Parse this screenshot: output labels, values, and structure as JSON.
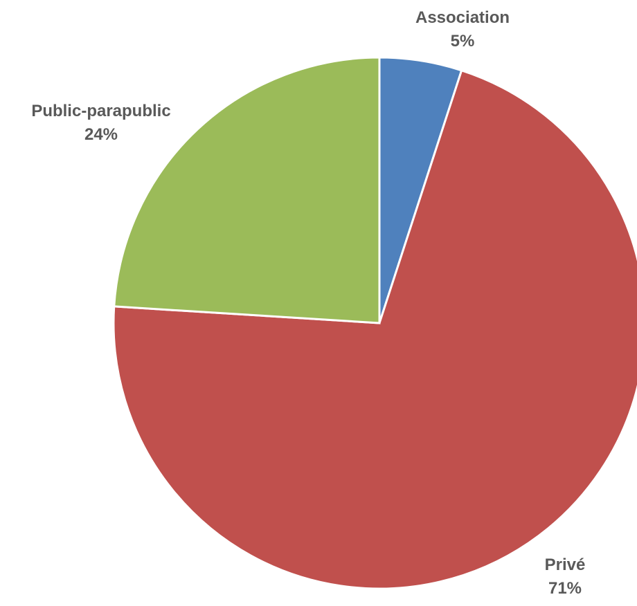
{
  "chart_data": {
    "type": "pie",
    "title": "",
    "start_angle_deg": 0,
    "direction": "clockwise",
    "slices": [
      {
        "label": "Association",
        "value": 5,
        "percent_label": "5%",
        "color": "#4F81BD"
      },
      {
        "label": "Privé",
        "value": 71,
        "percent_label": "71%",
        "color": "#C0504D"
      },
      {
        "label": "Public-parapublic",
        "value": 24,
        "percent_label": "24%",
        "color": "#9BBB59"
      }
    ],
    "legend": "none",
    "data_labels": "outside-end, category name and percentage"
  }
}
